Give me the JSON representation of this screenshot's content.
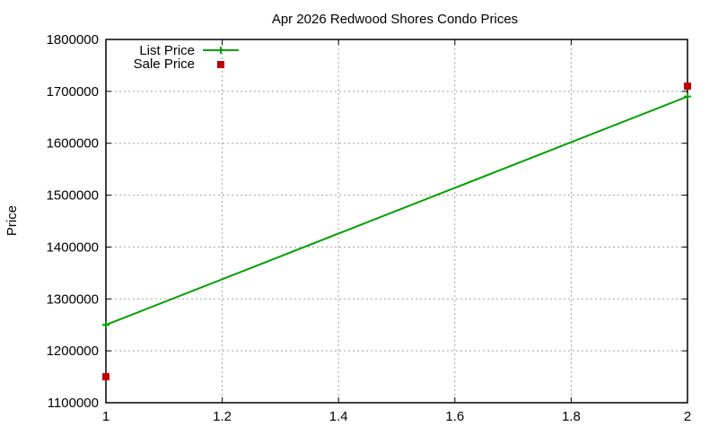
{
  "chart_data": {
    "type": "line",
    "title": "Apr 2026 Redwood Shores Condo Prices",
    "xlabel": "",
    "ylabel": "Price",
    "xlim": [
      1,
      2
    ],
    "ylim": [
      1100000,
      1800000
    ],
    "x_ticks": [
      "1",
      "1.2",
      "1.4",
      "1.6",
      "1.8",
      "2"
    ],
    "y_ticks": [
      "1100000",
      "1200000",
      "1300000",
      "1400000",
      "1500000",
      "1600000",
      "1700000",
      "1800000"
    ],
    "grid": true,
    "legend_position": "top-left",
    "series": [
      {
        "name": "List Price",
        "style": "line+cross",
        "color": "#00a000",
        "x": [
          1,
          2
        ],
        "values": [
          1250000,
          1690000
        ]
      },
      {
        "name": "Sale Price",
        "style": "square-points",
        "color": "#c00000",
        "x": [
          1,
          2
        ],
        "values": [
          1150000,
          1710000
        ]
      }
    ]
  }
}
